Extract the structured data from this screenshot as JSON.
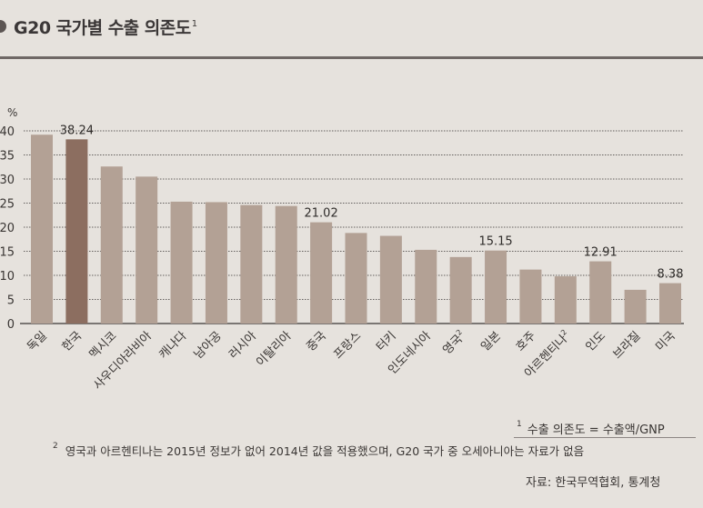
{
  "title": "G20 국가별 수출 의존도",
  "title_sup": "1",
  "chart_data": {
    "type": "bar",
    "ylabel": "%",
    "ylim": [
      0,
      40
    ],
    "yticks": [
      "0",
      "5",
      "10",
      "15",
      "20",
      "25",
      "30",
      "35",
      "40"
    ],
    "categories": [
      "독일",
      "한국",
      "멕시코",
      "사우디아라비아",
      "캐나다",
      "남아공",
      "러시아",
      "이탈리아",
      "중국",
      "프랑스",
      "터키",
      "인도네시아",
      "영국",
      "일본",
      "호주",
      "아르헨티나",
      "인도",
      "브라질",
      "미국"
    ],
    "category_sup": [
      "",
      "",
      "",
      "",
      "",
      "",
      "",
      "",
      "",
      "",
      "",
      "",
      "2",
      "",
      "",
      "2",
      "",
      "",
      ""
    ],
    "values": [
      39.2,
      38.24,
      32.6,
      30.5,
      25.3,
      25.2,
      24.6,
      24.4,
      21.02,
      18.8,
      18.2,
      15.3,
      13.8,
      15.15,
      11.2,
      9.8,
      12.91,
      7.0,
      8.38
    ],
    "labels": [
      "",
      "38.24",
      "",
      "",
      "",
      "",
      "",
      "",
      "21.02",
      "",
      "",
      "",
      "",
      "15.15",
      "",
      "",
      "12.91",
      "",
      "8.38"
    ],
    "grid": true,
    "bar_color": "#b3a195",
    "highlight_color": "#8c6e60",
    "highlight_index": 1
  },
  "footnote1": {
    "mark": "1",
    "text": "수출 의존도 = 수출액/GNP"
  },
  "footnote2": {
    "mark": "2",
    "text": "영국과 아르헨티나는 2015년 정보가 없어 2014년 값을 적용했으며, G20 국가 중 오세아니아는 자료가 없음"
  },
  "source": "자료: 한국무역협회, 통계청"
}
